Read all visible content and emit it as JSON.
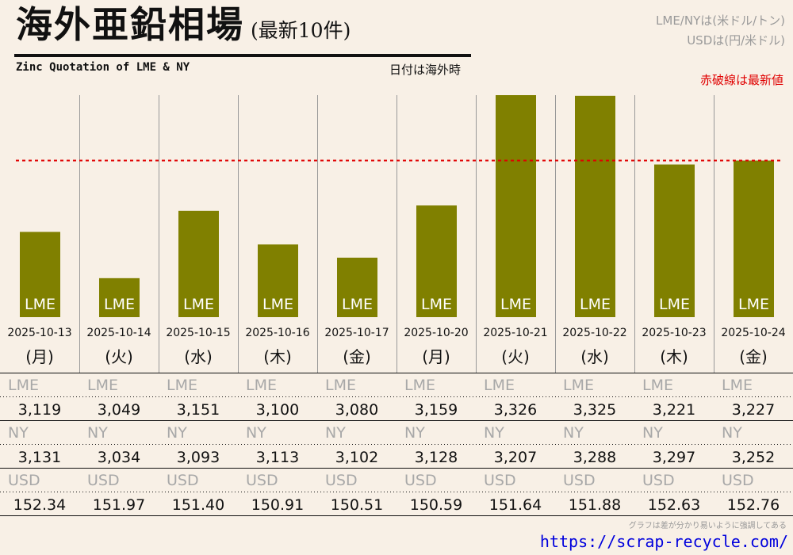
{
  "header": {
    "title": "海外亜鉛相場",
    "title_suffix": "(最新10件)",
    "subtitle": "Zinc Quotation of LME & NY",
    "date_note": "日付は海外時",
    "unit_lme_ny": "LME/NYは(米ドル/トン)",
    "unit_usd": "USDは(円/米ドル)",
    "latest_note": "赤破線は最新値"
  },
  "footer": {
    "note": "グラフは差が分かり易いように強調してある",
    "link": "https://scrap-recycle.com/"
  },
  "colors": {
    "background": "#f8f0e6",
    "bar": "#808000",
    "latest_line": "#e00000",
    "label_grey": "#a8a8a8",
    "link": "#0000dd"
  },
  "chart_data": {
    "type": "bar",
    "bar_label": "LME",
    "row_labels": {
      "lme": "LME",
      "ny": "NY",
      "usd": "USD"
    },
    "categories": [
      "2025-10-13",
      "2025-10-14",
      "2025-10-15",
      "2025-10-16",
      "2025-10-17",
      "2025-10-20",
      "2025-10-21",
      "2025-10-22",
      "2025-10-23",
      "2025-10-24"
    ],
    "weekdays": [
      "(月)",
      "(火)",
      "(水)",
      "(木)",
      "(金)",
      "(月)",
      "(火)",
      "(水)",
      "(木)",
      "(金)"
    ],
    "lme": [
      3119,
      3049,
      3151,
      3100,
      3080,
      3159,
      3326,
      3325,
      3221,
      3227
    ],
    "ny": [
      3131,
      3034,
      3093,
      3113,
      3102,
      3128,
      3207,
      3288,
      3297,
      3252
    ],
    "usd": [
      "152.34",
      "151.97",
      "151.40",
      "150.91",
      "150.51",
      "150.59",
      "151.64",
      "151.88",
      "152.63",
      "152.76"
    ],
    "latest_value": 3227,
    "latest_line": "dashed",
    "ylim": [
      2990,
      3326
    ],
    "grid": "vertical separators"
  }
}
